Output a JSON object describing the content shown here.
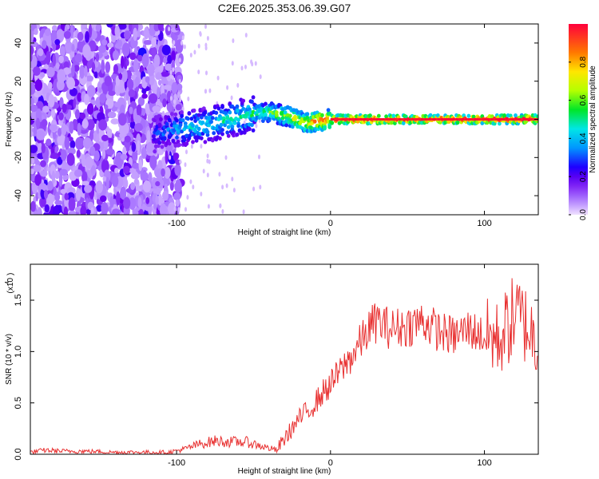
{
  "page": {
    "title": "C2E6.2025.353.06.39.G07"
  },
  "chart_data": [
    {
      "type": "heatmap",
      "title": "C2E6.2025.353.06.39.G07",
      "xlabel": "Height of straight line (km)",
      "ylabel": "Frequency (Hz)",
      "xlim": [
        -195,
        135
      ],
      "ylim": [
        -50,
        50
      ],
      "xticks": [
        -100,
        0,
        100
      ],
      "xtick_labels": [
        "-100",
        "0",
        "100"
      ],
      "yticks": [
        -40,
        -20,
        0,
        20,
        40
      ],
      "ytick_labels": [
        "-40",
        "-20",
        "0",
        "20",
        "40"
      ],
      "colorbar": {
        "label": "Normalized spectral amplitude",
        "range": [
          0.0,
          1.0
        ],
        "ticks": [
          0.0,
          0.2,
          0.4,
          0.6,
          0.8
        ],
        "tick_labels": [
          "0.0",
          "0.2",
          "0.4",
          "0.6",
          "0.8"
        ],
        "colormap": "rainbow"
      },
      "signal_track": {
        "x": [
          -115,
          -100,
          -90,
          -80,
          -70,
          -60,
          -50,
          -40,
          -35,
          -30,
          -25,
          -20,
          -15,
          -10,
          0,
          10,
          50,
          100,
          135
        ],
        "frequency": [
          -8,
          -5,
          -4,
          -3,
          -1,
          1,
          3,
          4,
          3,
          2,
          1,
          -1,
          -2,
          -1,
          0,
          0,
          0,
          0,
          0
        ],
        "amplitude": [
          0.3,
          0.4,
          0.45,
          0.45,
          0.5,
          0.5,
          0.55,
          0.6,
          0.65,
          0.7,
          0.75,
          0.8,
          0.85,
          0.9,
          0.95,
          1.0,
          1.0,
          1.0,
          1.0
        ]
      },
      "noise_region_xmax": -105
    },
    {
      "type": "line",
      "xlabel": "Height of straight line (km)",
      "ylabel": "SNR (10 * v/v)",
      "scale_label": "(x10",
      "scale_exp": "4",
      "scale_close": ")",
      "xlim": [
        -195,
        135
      ],
      "ylim": [
        0.0,
        1.85
      ],
      "xticks": [
        -100,
        0,
        100
      ],
      "xtick_labels": [
        "-100",
        "0",
        "100"
      ],
      "yticks": [
        0.0,
        0.5,
        1.0,
        1.5
      ],
      "ytick_labels": [
        "0.0",
        "0.5",
        "1.0",
        "1.5"
      ],
      "series": [
        {
          "name": "SNR",
          "color": "#e83030",
          "x": [
            -195,
            -185,
            -175,
            -160,
            -140,
            -120,
            -105,
            -95,
            -85,
            -75,
            -65,
            -55,
            -45,
            -35,
            -30,
            -25,
            -20,
            -15,
            -10,
            -5,
            0,
            5,
            10,
            15,
            20,
            25,
            30,
            35,
            40,
            50,
            60,
            70,
            80,
            90,
            100,
            110,
            115,
            120,
            125,
            130,
            135
          ],
          "y": [
            0.02,
            0.04,
            0.03,
            0.03,
            0.02,
            0.02,
            0.02,
            0.05,
            0.1,
            0.13,
            0.12,
            0.12,
            0.08,
            0.04,
            0.15,
            0.25,
            0.35,
            0.42,
            0.5,
            0.6,
            0.68,
            0.78,
            0.88,
            0.98,
            1.1,
            1.22,
            1.3,
            1.25,
            1.22,
            1.25,
            1.3,
            1.2,
            1.15,
            1.22,
            1.15,
            1.12,
            1.25,
            1.35,
            1.3,
            1.2,
            1.05
          ]
        }
      ]
    }
  ]
}
